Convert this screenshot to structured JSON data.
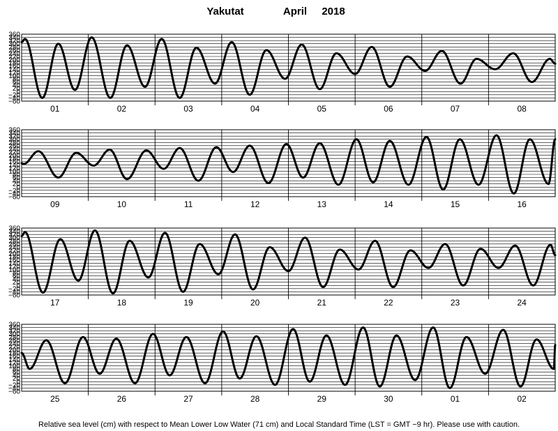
{
  "header": {
    "station": "Yakutat",
    "month": "April",
    "year": "2018"
  },
  "footer": {
    "note": "Relative sea level (cm) with respect to Mean Lower Low Water (71 cm) and Local Standard Time (LST = GMT −9 hr). Please use with caution."
  },
  "chart_data": [
    {
      "type": "line",
      "days": [
        "01",
        "02",
        "03",
        "04",
        "05",
        "06",
        "07",
        "08"
      ],
      "ylim": [
        -60,
        360
      ],
      "yticks": [
        -60,
        -40,
        -20,
        0,
        20,
        40,
        60,
        80,
        100,
        120,
        140,
        160,
        180,
        200,
        220,
        240,
        260,
        280,
        300,
        320,
        340,
        360
      ],
      "grid": true,
      "extremes": [
        {
          "t": 0.0,
          "h": 310
        },
        {
          "t": 0.05,
          "h": 330
        },
        {
          "t": 0.31,
          "h": -40
        },
        {
          "t": 0.55,
          "h": 300
        },
        {
          "t": 0.8,
          "h": 10
        },
        {
          "t": 1.05,
          "h": 340
        },
        {
          "t": 1.33,
          "h": -40
        },
        {
          "t": 1.58,
          "h": 290
        },
        {
          "t": 1.85,
          "h": 30
        },
        {
          "t": 2.1,
          "h": 330
        },
        {
          "t": 2.37,
          "h": -40
        },
        {
          "t": 2.62,
          "h": 275
        },
        {
          "t": 2.9,
          "h": 50
        },
        {
          "t": 3.15,
          "h": 310
        },
        {
          "t": 3.42,
          "h": -20
        },
        {
          "t": 3.67,
          "h": 260
        },
        {
          "t": 3.95,
          "h": 80
        },
        {
          "t": 4.2,
          "h": 295
        },
        {
          "t": 4.47,
          "h": 15
        },
        {
          "t": 4.72,
          "h": 240
        },
        {
          "t": 5.0,
          "h": 110
        },
        {
          "t": 5.25,
          "h": 280
        },
        {
          "t": 5.52,
          "h": 30
        },
        {
          "t": 5.78,
          "h": 220
        },
        {
          "t": 6.05,
          "h": 130
        },
        {
          "t": 6.3,
          "h": 255
        },
        {
          "t": 6.58,
          "h": 50
        },
        {
          "t": 6.82,
          "h": 205
        },
        {
          "t": 7.1,
          "h": 140
        },
        {
          "t": 7.37,
          "h": 240
        },
        {
          "t": 7.65,
          "h": 60
        },
        {
          "t": 7.92,
          "h": 205
        },
        {
          "t": 8.0,
          "h": 175
        }
      ]
    },
    {
      "type": "line",
      "days": [
        "09",
        "10",
        "11",
        "12",
        "13",
        "14",
        "15",
        "16"
      ],
      "ylim": [
        -60,
        360
      ],
      "yticks": [
        -60,
        -40,
        -20,
        0,
        20,
        40,
        60,
        80,
        100,
        120,
        140,
        160,
        180,
        200,
        220,
        240,
        260,
        280,
        300,
        320,
        340,
        360
      ],
      "grid": true,
      "extremes": [
        {
          "t": 0.0,
          "h": 150
        },
        {
          "t": 0.03,
          "h": 145
        },
        {
          "t": 0.25,
          "h": 225
        },
        {
          "t": 0.55,
          "h": 60
        },
        {
          "t": 0.82,
          "h": 215
        },
        {
          "t": 1.08,
          "h": 135
        },
        {
          "t": 1.32,
          "h": 235
        },
        {
          "t": 1.58,
          "h": 50
        },
        {
          "t": 1.87,
          "h": 230
        },
        {
          "t": 2.13,
          "h": 115
        },
        {
          "t": 2.37,
          "h": 245
        },
        {
          "t": 2.65,
          "h": 40
        },
        {
          "t": 2.92,
          "h": 250
        },
        {
          "t": 3.17,
          "h": 95
        },
        {
          "t": 3.42,
          "h": 260
        },
        {
          "t": 3.7,
          "h": 25
        },
        {
          "t": 3.97,
          "h": 270
        },
        {
          "t": 4.22,
          "h": 60
        },
        {
          "t": 4.47,
          "h": 275
        },
        {
          "t": 4.75,
          "h": 15
        },
        {
          "t": 5.02,
          "h": 300
        },
        {
          "t": 5.27,
          "h": 30
        },
        {
          "t": 5.52,
          "h": 290
        },
        {
          "t": 5.8,
          "h": 15
        },
        {
          "t": 6.07,
          "h": 315
        },
        {
          "t": 6.32,
          "h": -15
        },
        {
          "t": 6.57,
          "h": 300
        },
        {
          "t": 6.85,
          "h": 15
        },
        {
          "t": 7.12,
          "h": 325
        },
        {
          "t": 7.38,
          "h": -40
        },
        {
          "t": 7.62,
          "h": 300
        },
        {
          "t": 7.9,
          "h": 20
        },
        {
          "t": 8.0,
          "h": 300
        }
      ]
    },
    {
      "type": "line",
      "days": [
        "17",
        "18",
        "19",
        "20",
        "21",
        "22",
        "23",
        "24"
      ],
      "ylim": [
        -60,
        360
      ],
      "yticks": [
        -60,
        -40,
        -20,
        0,
        20,
        40,
        60,
        80,
        100,
        120,
        140,
        160,
        180,
        200,
        220,
        240,
        260,
        280,
        300,
        320,
        340,
        360
      ],
      "grid": true,
      "extremes": [
        {
          "t": 0.0,
          "h": 310
        },
        {
          "t": 0.05,
          "h": 335
        },
        {
          "t": 0.32,
          "h": -45
        },
        {
          "t": 0.58,
          "h": 290
        },
        {
          "t": 0.85,
          "h": 30
        },
        {
          "t": 1.1,
          "h": 345
        },
        {
          "t": 1.37,
          "h": -50
        },
        {
          "t": 1.62,
          "h": 280
        },
        {
          "t": 1.9,
          "h": 50
        },
        {
          "t": 2.15,
          "h": 330
        },
        {
          "t": 2.42,
          "h": -40
        },
        {
          "t": 2.67,
          "h": 260
        },
        {
          "t": 2.95,
          "h": 70
        },
        {
          "t": 3.2,
          "h": 320
        },
        {
          "t": 3.47,
          "h": -25
        },
        {
          "t": 3.72,
          "h": 240
        },
        {
          "t": 4.0,
          "h": 90
        },
        {
          "t": 4.25,
          "h": 300
        },
        {
          "t": 4.52,
          "h": -10
        },
        {
          "t": 4.77,
          "h": 225
        },
        {
          "t": 5.05,
          "h": 100
        },
        {
          "t": 5.3,
          "h": 280
        },
        {
          "t": 5.57,
          "h": -10
        },
        {
          "t": 5.83,
          "h": 220
        },
        {
          "t": 6.1,
          "h": 110
        },
        {
          "t": 6.35,
          "h": 260
        },
        {
          "t": 6.62,
          "h": 0
        },
        {
          "t": 6.88,
          "h": 230
        },
        {
          "t": 7.15,
          "h": 110
        },
        {
          "t": 7.4,
          "h": 250
        },
        {
          "t": 7.67,
          "h": 0
        },
        {
          "t": 7.93,
          "h": 255
        },
        {
          "t": 8.0,
          "h": 190
        }
      ]
    },
    {
      "type": "line",
      "days": [
        "25",
        "26",
        "27",
        "28",
        "29",
        "30",
        "01",
        "02"
      ],
      "ylim": [
        -60,
        360
      ],
      "yticks": [
        -60,
        -40,
        -20,
        0,
        20,
        40,
        60,
        80,
        100,
        120,
        140,
        160,
        180,
        200,
        220,
        240,
        260,
        280,
        300,
        320,
        340,
        360
      ],
      "grid": true,
      "extremes": [
        {
          "t": 0.0,
          "h": 180
        },
        {
          "t": 0.12,
          "h": 80
        },
        {
          "t": 0.37,
          "h": 260
        },
        {
          "t": 0.65,
          "h": -10
        },
        {
          "t": 0.92,
          "h": 280
        },
        {
          "t": 1.17,
          "h": 50
        },
        {
          "t": 1.42,
          "h": 270
        },
        {
          "t": 1.7,
          "h": -10
        },
        {
          "t": 1.97,
          "h": 300
        },
        {
          "t": 2.22,
          "h": 40
        },
        {
          "t": 2.47,
          "h": 280
        },
        {
          "t": 2.75,
          "h": -10
        },
        {
          "t": 3.02,
          "h": 315
        },
        {
          "t": 3.27,
          "h": 20
        },
        {
          "t": 3.52,
          "h": 285
        },
        {
          "t": 3.8,
          "h": -20
        },
        {
          "t": 4.07,
          "h": 330
        },
        {
          "t": 4.32,
          "h": 0
        },
        {
          "t": 4.57,
          "h": 290
        },
        {
          "t": 4.85,
          "h": -20
        },
        {
          "t": 5.12,
          "h": 340
        },
        {
          "t": 5.37,
          "h": -30
        },
        {
          "t": 5.62,
          "h": 290
        },
        {
          "t": 5.9,
          "h": 10
        },
        {
          "t": 6.17,
          "h": 340
        },
        {
          "t": 6.42,
          "h": -40
        },
        {
          "t": 6.67,
          "h": 280
        },
        {
          "t": 6.95,
          "h": 50
        },
        {
          "t": 7.22,
          "h": 325
        },
        {
          "t": 7.48,
          "h": -30
        },
        {
          "t": 7.72,
          "h": 265
        },
        {
          "t": 7.98,
          "h": 80
        },
        {
          "t": 8.0,
          "h": 230
        }
      ]
    }
  ]
}
